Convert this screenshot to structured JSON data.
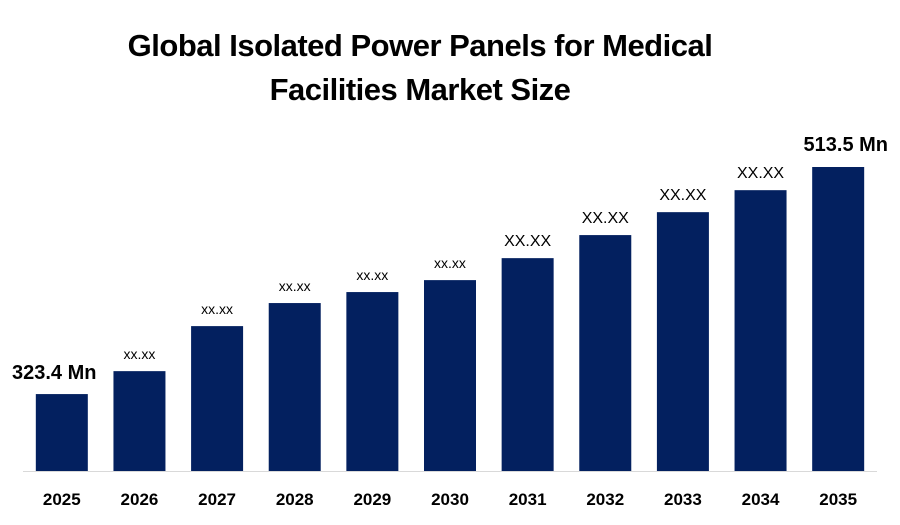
{
  "chart_data": {
    "type": "bar",
    "title_line1": "Global Isolated Power Panels for Medical",
    "title_line2": "Facilities Market Size",
    "categories": [
      "2025",
      "2026",
      "2027",
      "2028",
      "2029",
      "2030",
      "2031",
      "2032",
      "2033",
      "2034",
      "2035"
    ],
    "values": [
      323.4,
      342.6,
      380.3,
      399.6,
      408.8,
      418.8,
      437.2,
      456.5,
      475.7,
      494.1,
      513.5
    ],
    "data_labels": [
      "323.4 Mn",
      "xx.xx",
      "xx.xx",
      "xx.xx",
      "xx.xx",
      "xx.xx",
      "XX.XX",
      "XX.XX",
      "XX.XX",
      "XX.XX",
      "513.5 Mn"
    ],
    "xlabel": "",
    "ylabel": "",
    "ylim": [
      259,
      513.5
    ],
    "grid": false,
    "legend": "none",
    "bar_color": "#03205F"
  }
}
